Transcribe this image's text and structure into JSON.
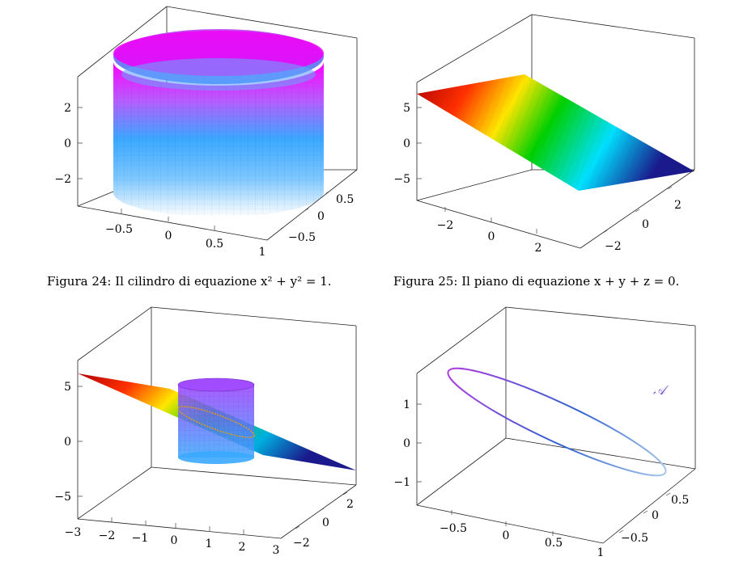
{
  "figures": [
    {
      "id": "cylinder",
      "caption": "Figura 24: Il cilindro di equazione x² + y² = 1.",
      "z_ticks": [
        "−2",
        "0",
        "2"
      ],
      "x_ticks": [
        "−0.5",
        "0",
        "0.5",
        "1"
      ],
      "y_ticks": [
        "−0.5",
        "0",
        "0.5"
      ]
    },
    {
      "id": "plane",
      "caption": "Figura 25: Il piano di equazione x + y + z = 0.",
      "z_ticks": [
        "−5",
        "0",
        "5"
      ],
      "x_ticks": [
        "−2",
        "0",
        "2"
      ],
      "y_ticks": [
        "−2",
        "0",
        "2"
      ]
    },
    {
      "id": "plane-cylinder",
      "z_ticks": [
        "−5",
        "0",
        "5"
      ],
      "x_ticks": [
        "−3",
        "−2",
        "−1",
        "0",
        "1",
        "2",
        "3"
      ],
      "y_ticks": [
        "−2",
        "0",
        "2"
      ]
    },
    {
      "id": "ellipse",
      "annotation": "𝒜",
      "z_ticks": [
        "−1",
        "0",
        "1"
      ],
      "x_ticks": [
        "−0.5",
        "0",
        "0.5",
        "1"
      ],
      "y_ticks": [
        "−0.5",
        "0",
        "0.5"
      ]
    }
  ],
  "colors": {
    "cylinder_top": "#ff00ff",
    "cylinder_mid": "#3aa8ff",
    "cylinder_bottom": "#ffffff",
    "plane_high": "#b00000",
    "plane_mid": "#ffe600",
    "plane_green": "#00d000",
    "plane_cyan": "#00e0ff",
    "plane_low": "#1a1a8c",
    "curve_start": "#b040e0",
    "curve_mid": "#3060d0",
    "curve_end": "#a8c8e8"
  }
}
